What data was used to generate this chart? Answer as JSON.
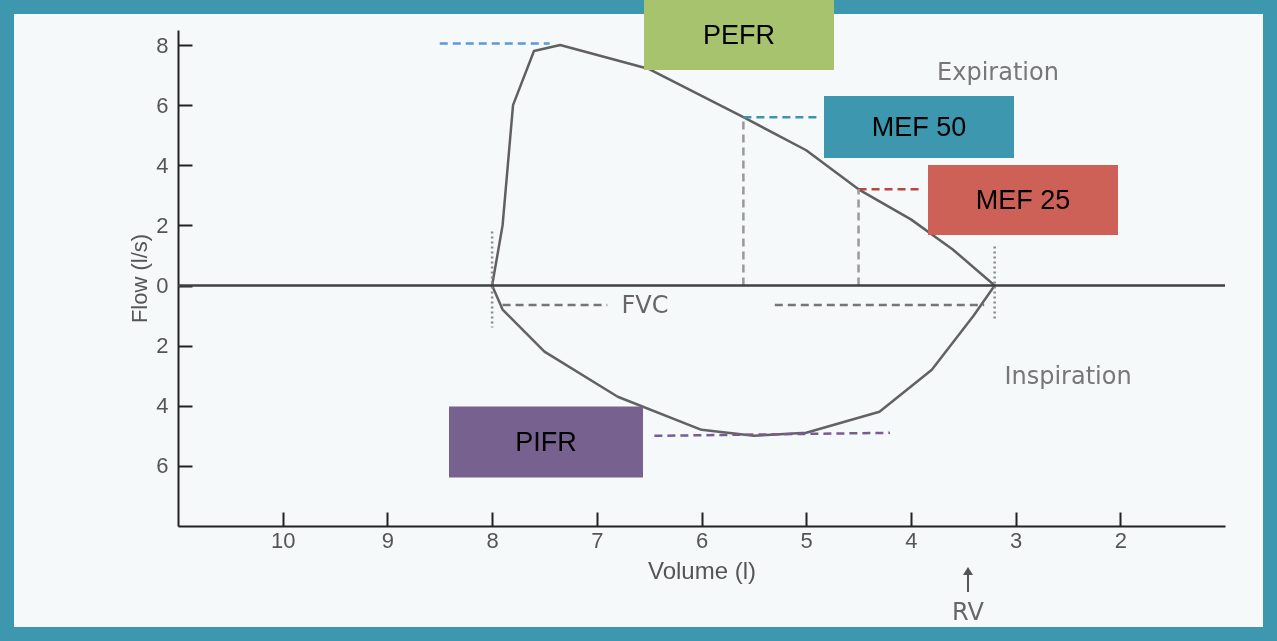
{
  "chart_data": {
    "type": "line",
    "xlabel": "Volume (l)",
    "ylabel": "Flow (l/s)",
    "xlim": [
      11,
      1
    ],
    "xticks": [
      10,
      9,
      8,
      7,
      6,
      5,
      4,
      3,
      2
    ],
    "ylim": [
      -8,
      8.5
    ],
    "yticks": [
      8,
      6,
      4,
      2,
      0,
      {
        "value": -2,
        "label": "2"
      },
      {
        "value": -4,
        "label": "4"
      },
      {
        "value": -6,
        "label": "6"
      }
    ],
    "grid": false,
    "marker": "none",
    "series": [
      {
        "color": "#606060",
        "line_style": "solid",
        "x": [
          8.0,
          7.95,
          7.9,
          7.85,
          7.8,
          7.6,
          7.35,
          6.5,
          5.6,
          5.0,
          4.5,
          4.0,
          3.6,
          3.2
        ],
        "values": [
          0,
          1.0,
          2,
          4,
          6,
          7.8,
          8.0,
          7.2,
          5.6,
          4.5,
          3.2,
          2.2,
          1.2,
          0
        ]
      },
      {
        "color": "#626262",
        "line_style": "solid",
        "x": [
          3.2,
          3.4,
          3.8,
          4.3,
          5.0,
          5.5,
          6.0,
          6.8,
          7.5,
          7.9,
          8.0
        ],
        "values": [
          0,
          -1.0,
          -2.8,
          -4.2,
          -4.9,
          -5.0,
          -4.8,
          -3.7,
          -2.2,
          -0.8,
          0
        ]
      },
      {
        "color": "#5b9bd5",
        "line_style": "dashed",
        "x": [
          8.5,
          7.45
        ],
        "values": [
          8.05,
          8.05
        ]
      },
      {
        "color": "#3a96ad",
        "line_style": "dashed",
        "x": [
          5.6,
          4.88
        ],
        "values": [
          5.6,
          5.6
        ]
      },
      {
        "color": "#b8473e",
        "line_style": "dashed",
        "x": [
          4.5,
          3.92
        ],
        "values": [
          3.2,
          3.2
        ]
      },
      {
        "color": "#7a5b92",
        "line_style": "dashed",
        "x": [
          6.45,
          4.2
        ],
        "values": [
          -5.0,
          -4.9
        ]
      },
      {
        "color": "#999999",
        "line_style": "dashed",
        "x": [
          5.6,
          5.6
        ],
        "values": [
          0,
          5.6
        ]
      },
      {
        "color": "#9a9a9a",
        "line_style": "dashed",
        "x": [
          4.5,
          4.5
        ],
        "values": [
          0,
          3.2
        ]
      },
      {
        "color": "#888888",
        "line_style": "dotted",
        "x": [
          8.0,
          8.0
        ],
        "values": [
          1.8,
          -1.4
        ]
      },
      {
        "color": "#898989",
        "line_style": "dotted",
        "x": [
          3.2,
          3.2
        ],
        "values": [
          1.3,
          -1.2
        ]
      },
      {
        "color": "#757575",
        "line_style": "dashed",
        "x": [
          7.9,
          6.9
        ],
        "values": [
          -0.65,
          -0.65
        ]
      },
      {
        "color": "#767676",
        "line_style": "dashed",
        "x": [
          5.3,
          3.3
        ],
        "values": [
          -0.65,
          -0.65
        ]
      },
      {
        "color": "#404040",
        "line_style": "solid",
        "x": [
          11,
          1
        ],
        "values": [
          0,
          0
        ]
      }
    ],
    "annotations": [
      "PEFR",
      "MEF 50",
      "MEF 25",
      "PIFR",
      "Expiration",
      "Inspiration",
      "FVC",
      "RV"
    ]
  }
}
